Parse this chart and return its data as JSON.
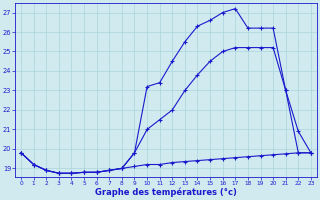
{
  "title": "Graphe des températures (°c)",
  "bg_color": "#d0eaf0",
  "grid_color": "#b0d8e0",
  "line_color": "#1a1acc",
  "xlim_min": -0.5,
  "xlim_max": 23.5,
  "ylim_min": 18.55,
  "ylim_max": 27.5,
  "yticks": [
    19,
    20,
    21,
    22,
    23,
    24,
    25,
    26,
    27
  ],
  "xticks": [
    0,
    1,
    2,
    3,
    4,
    5,
    6,
    7,
    8,
    9,
    10,
    11,
    12,
    13,
    14,
    15,
    16,
    17,
    18,
    19,
    20,
    21,
    22,
    23
  ],
  "series1_x": [
    0,
    1,
    2,
    3,
    4,
    5,
    6,
    7,
    8,
    9,
    10,
    11,
    12,
    13,
    14,
    15,
    16,
    17,
    18,
    19,
    20,
    21,
    22,
    23
  ],
  "series1_y": [
    19.8,
    19.2,
    18.9,
    18.75,
    18.75,
    18.8,
    18.8,
    18.9,
    19.0,
    19.1,
    19.2,
    19.2,
    19.3,
    19.35,
    19.4,
    19.45,
    19.5,
    19.55,
    19.6,
    19.65,
    19.7,
    19.75,
    19.8,
    19.8
  ],
  "series2_x": [
    0,
    1,
    2,
    3,
    4,
    5,
    6,
    7,
    8,
    9,
    10,
    11,
    12,
    13,
    14,
    15,
    16,
    17,
    18,
    19,
    20,
    21,
    22,
    23
  ],
  "series2_y": [
    19.8,
    19.2,
    18.9,
    18.75,
    18.75,
    18.8,
    18.8,
    18.9,
    19.0,
    19.8,
    21.0,
    21.5,
    22.0,
    23.0,
    23.8,
    24.5,
    25.0,
    25.2,
    25.2,
    25.2,
    25.2,
    23.0,
    20.9,
    19.8
  ],
  "series3_x": [
    0,
    1,
    2,
    3,
    4,
    5,
    6,
    7,
    8,
    9,
    10,
    11,
    12,
    13,
    14,
    15,
    16,
    17,
    18,
    19,
    20,
    21,
    22,
    23
  ],
  "series3_y": [
    19.8,
    19.2,
    18.9,
    18.75,
    18.75,
    18.8,
    18.8,
    18.9,
    19.0,
    19.8,
    23.2,
    23.4,
    24.5,
    25.5,
    26.3,
    26.6,
    27.0,
    27.2,
    26.2,
    26.2,
    26.2,
    23.0,
    19.8,
    19.8
  ]
}
